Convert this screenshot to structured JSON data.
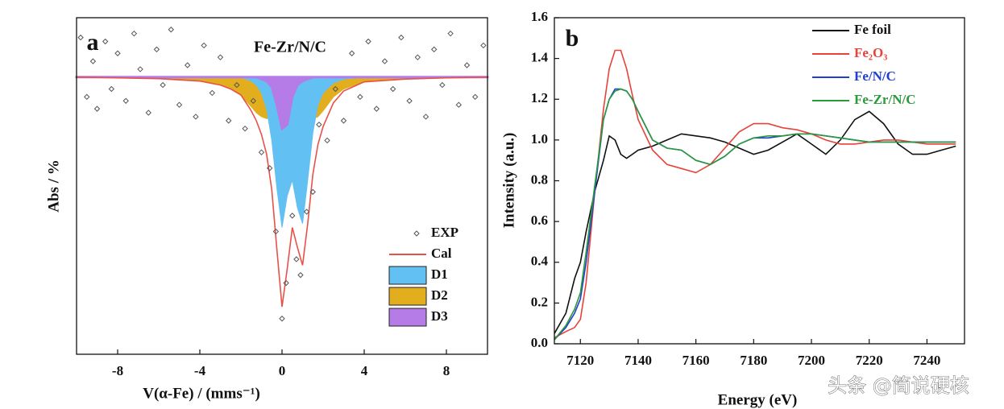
{
  "chart_data": [
    {
      "type": "area",
      "panel": "a",
      "title": "Fe-Zr/N/C",
      "xlabel": "V(α-Fe) / (mms⁻¹)",
      "ylabel": "Abs / %",
      "xlim": [
        -10,
        10
      ],
      "xticks": [
        -8,
        -4,
        0,
        4,
        8
      ],
      "ylim": [
        -7,
        1.5
      ],
      "x": [
        -10,
        -8,
        -6,
        -4,
        -3,
        -2.5,
        -2,
        -1.75,
        -1.5,
        -1.25,
        -1,
        -0.75,
        -0.5,
        -0.25,
        0,
        0.25,
        0.5,
        0.75,
        1,
        1.25,
        1.5,
        1.75,
        2,
        2.5,
        3,
        4,
        6,
        8,
        10
      ],
      "series": [
        {
          "name": "EXP",
          "kind": "scatter",
          "color": "#555555",
          "x": [
            -9.8,
            -9.5,
            -9.2,
            -9.0,
            -8.6,
            -8.3,
            -8.0,
            -7.6,
            -7.2,
            -6.9,
            -6.5,
            -6.1,
            -5.8,
            -5.4,
            -5.0,
            -4.6,
            -4.2,
            -3.8,
            -3.4,
            -3.0,
            -2.6,
            -2.2,
            -1.8,
            -1.4,
            -1.0,
            -0.6,
            -0.3,
            0.0,
            0.2,
            0.5,
            0.7,
            0.9,
            1.2,
            1.5,
            1.8,
            2.2,
            2.6,
            3.0,
            3.4,
            3.8,
            4.2,
            4.6,
            5.0,
            5.4,
            5.8,
            6.2,
            6.6,
            7.0,
            7.4,
            7.8,
            8.2,
            8.6,
            9.0,
            9.4,
            9.8
          ],
          "values": [
            1.0,
            -0.5,
            0.4,
            -0.8,
            0.9,
            -0.3,
            0.6,
            -0.6,
            1.1,
            0.2,
            -0.9,
            0.7,
            -0.2,
            1.2,
            -0.7,
            0.3,
            -1.0,
            0.8,
            -0.4,
            0.5,
            -1.1,
            -0.2,
            -1.3,
            -0.6,
            -1.9,
            -2.3,
            -3.9,
            -6.1,
            -5.2,
            -3.5,
            -4.6,
            -5.0,
            -3.4,
            -2.9,
            -1.2,
            -1.6,
            -0.3,
            -1.1,
            0.6,
            -0.5,
            0.9,
            -0.8,
            0.4,
            -0.3,
            1.0,
            -0.6,
            0.5,
            -1.0,
            0.7,
            -0.2,
            1.1,
            -0.7,
            0.3,
            -0.5,
            0.8
          ]
        },
        {
          "name": "Cal",
          "kind": "line",
          "color": "#e8514a",
          "values": [
            0,
            -0.02,
            -0.04,
            -0.1,
            -0.2,
            -0.3,
            -0.45,
            -0.65,
            -0.85,
            -1.1,
            -1.45,
            -1.95,
            -2.85,
            -4.35,
            -5.8,
            -4.85,
            -3.8,
            -4.3,
            -4.75,
            -3.7,
            -2.45,
            -1.7,
            -1.25,
            -0.65,
            -0.35,
            -0.12,
            -0.05,
            -0.02,
            0
          ]
        },
        {
          "name": "D1",
          "kind": "area",
          "color": "#63c0f2",
          "values": [
            0,
            0,
            0,
            0,
            0,
            0,
            0,
            -0.05,
            -0.1,
            -0.2,
            -0.4,
            -0.8,
            -1.6,
            -2.8,
            -3.8,
            -3.0,
            -2.6,
            -3.3,
            -3.7,
            -2.6,
            -1.4,
            -0.7,
            -0.4,
            -0.15,
            -0.05,
            0,
            0,
            0,
            0
          ]
        },
        {
          "name": "D2",
          "kind": "area",
          "color": "#e2ae1e",
          "values": [
            0,
            -0.02,
            -0.04,
            -0.1,
            -0.2,
            -0.3,
            -0.45,
            -0.6,
            -0.75,
            -0.9,
            -1.0,
            -1.05,
            -1.0,
            -0.85,
            -0.7,
            -0.65,
            -0.7,
            -0.8,
            -0.95,
            -1.05,
            -1.05,
            -1.0,
            -0.85,
            -0.5,
            -0.3,
            -0.12,
            -0.05,
            -0.02,
            0
          ]
        },
        {
          "name": "D3",
          "kind": "area",
          "color": "#b57be6",
          "values": [
            0,
            0,
            0,
            0,
            0,
            0,
            0,
            0,
            0,
            0,
            -0.05,
            -0.1,
            -0.25,
            -0.7,
            -1.3,
            -1.2,
            -0.5,
            -0.2,
            -0.1,
            -0.05,
            0,
            0,
            0,
            0,
            0,
            0,
            0,
            0,
            0
          ]
        }
      ]
    },
    {
      "type": "line",
      "panel": "b",
      "xlabel": "Energy (eV)",
      "ylabel": "Intensity (a.u.)",
      "xlim": [
        7111,
        7253
      ],
      "xticks": [
        7120,
        7140,
        7160,
        7180,
        7200,
        7220,
        7240
      ],
      "ylim": [
        0,
        1.6
      ],
      "yticks": [
        {
          "value": 0,
          "label": "0.0"
        },
        0.2,
        0.4,
        0.6,
        0.8,
        {
          "value": 1,
          "label": "1.0"
        },
        1.2,
        1.4,
        1.6
      ],
      "x": [
        7111,
        7115,
        7118,
        7120,
        7122,
        7125,
        7128,
        7130,
        7132,
        7134,
        7136,
        7138,
        7140,
        7145,
        7150,
        7155,
        7160,
        7165,
        7170,
        7175,
        7180,
        7185,
        7190,
        7195,
        7200,
        7205,
        7210,
        7215,
        7220,
        7225,
        7230,
        7235,
        7240,
        7245,
        7250
      ],
      "series": [
        {
          "name": "Fe foil",
          "kind": "line",
          "color": "#111111",
          "values": [
            0.05,
            0.15,
            0.32,
            0.4,
            0.55,
            0.75,
            0.9,
            1.02,
            1.0,
            0.93,
            0.91,
            0.93,
            0.95,
            0.97,
            1.0,
            1.03,
            1.02,
            1.01,
            0.99,
            0.96,
            0.93,
            0.95,
            0.99,
            1.03,
            0.98,
            0.93,
            1.0,
            1.1,
            1.14,
            1.08,
            0.98,
            0.93,
            0.93,
            0.95,
            0.97
          ]
        },
        {
          "name": "Fe₂O₃",
          "kind": "line",
          "color": "#e8423a",
          "values": [
            0.03,
            0.06,
            0.08,
            0.12,
            0.3,
            0.75,
            1.15,
            1.35,
            1.44,
            1.44,
            1.35,
            1.22,
            1.1,
            0.95,
            0.88,
            0.86,
            0.84,
            0.88,
            0.96,
            1.04,
            1.08,
            1.08,
            1.06,
            1.05,
            1.03,
            1.0,
            0.98,
            0.98,
            0.99,
            1.0,
            1.0,
            0.99,
            0.98,
            0.98,
            0.98
          ]
        },
        {
          "name": "Fe/N/C",
          "kind": "line",
          "color": "#1f3fcf",
          "values": [
            0.02,
            0.08,
            0.15,
            0.22,
            0.4,
            0.75,
            1.1,
            1.2,
            1.25,
            1.25,
            1.24,
            1.2,
            1.14,
            1.0,
            0.96,
            0.95,
            0.9,
            0.88,
            0.92,
            0.98,
            1.01,
            1.01,
            1.02,
            1.03,
            1.03,
            1.02,
            1.01,
            1.0,
            0.99,
            0.99,
            0.99,
            0.99,
            0.99,
            0.99,
            0.99
          ]
        },
        {
          "name": "Fe-Zr/N/C",
          "kind": "line",
          "color": "#2a9a3a",
          "values": [
            0.02,
            0.09,
            0.17,
            0.25,
            0.45,
            0.78,
            1.1,
            1.2,
            1.24,
            1.25,
            1.24,
            1.2,
            1.14,
            1.0,
            0.96,
            0.95,
            0.9,
            0.88,
            0.92,
            0.98,
            1.01,
            1.02,
            1.02,
            1.03,
            1.03,
            1.02,
            1.01,
            1.0,
            0.99,
            0.99,
            0.99,
            0.99,
            0.99,
            0.99,
            0.99
          ]
        }
      ]
    }
  ],
  "watermark": "头条 @简说硬核"
}
